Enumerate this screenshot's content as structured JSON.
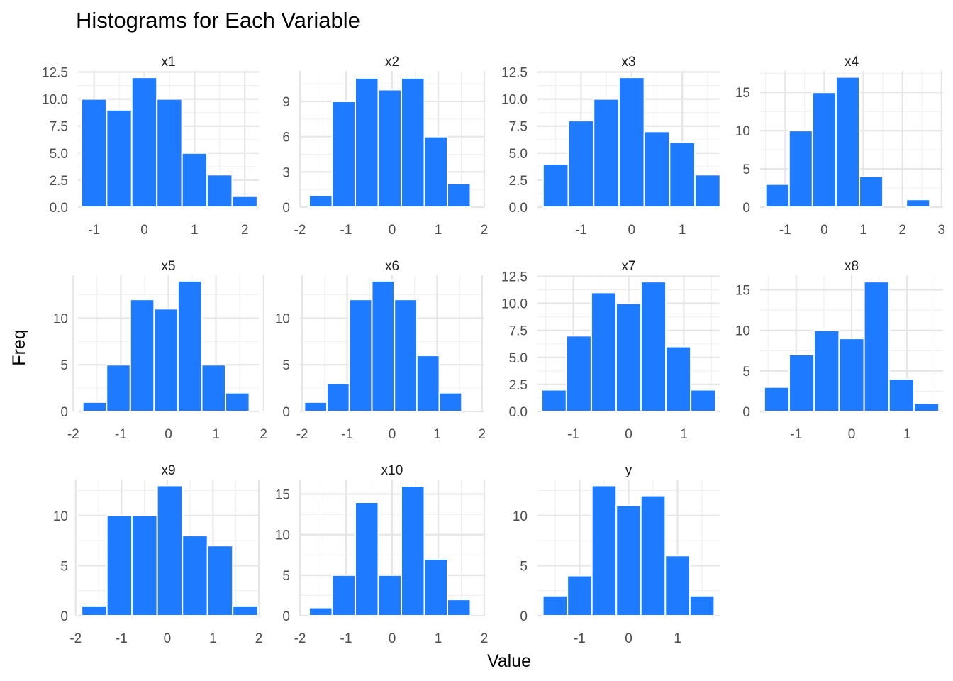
{
  "title": "Histograms for Each Variable",
  "xlabel": "Value",
  "ylabel": "Freq",
  "bar_color": "#1E7BFF",
  "chart_data": {
    "type": "bar",
    "title": "Histograms for Each Variable",
    "xlabel": "Value",
    "ylabel": "Freq",
    "grid": true,
    "facets": [
      {
        "name": "x1",
        "x_ticks": [
          "-1",
          "0",
          "1",
          "2"
        ],
        "y_ticks": [
          "0.0",
          "2.5",
          "5.0",
          "7.5",
          "10.0",
          "12.5"
        ],
        "xlim": [
          -1.32,
          2.28
        ],
        "ylim": [
          0,
          12.6
        ],
        "x_tick_values": [
          -1,
          0,
          1,
          2
        ],
        "y_tick_values": [
          0,
          2.5,
          5,
          7.5,
          10,
          12.5
        ],
        "bins": [
          {
            "x0": -1.25,
            "x1": -0.75,
            "count": 10
          },
          {
            "x0": -0.75,
            "x1": -0.25,
            "count": 9
          },
          {
            "x0": -0.25,
            "x1": 0.25,
            "count": 12
          },
          {
            "x0": 0.25,
            "x1": 0.75,
            "count": 10
          },
          {
            "x0": 0.75,
            "x1": 1.25,
            "count": 5
          },
          {
            "x0": 1.25,
            "x1": 1.75,
            "count": 3
          },
          {
            "x0": 1.75,
            "x1": 2.25,
            "count": 1
          }
        ]
      },
      {
        "name": "x2",
        "x_ticks": [
          "-2",
          "-1",
          "0",
          "1",
          "2"
        ],
        "y_ticks": [
          "0",
          "3",
          "6",
          "9"
        ],
        "xlim": [
          -2.0,
          2.0
        ],
        "ylim": [
          0,
          11.6
        ],
        "x_tick_values": [
          -2,
          -1,
          0,
          1,
          2
        ],
        "y_tick_values": [
          0,
          3,
          6,
          9
        ],
        "bins": [
          {
            "x0": -1.8,
            "x1": -1.3,
            "count": 1
          },
          {
            "x0": -1.3,
            "x1": -0.8,
            "count": 9
          },
          {
            "x0": -0.8,
            "x1": -0.3,
            "count": 11
          },
          {
            "x0": -0.3,
            "x1": 0.2,
            "count": 10
          },
          {
            "x0": 0.2,
            "x1": 0.7,
            "count": 11
          },
          {
            "x0": 0.7,
            "x1": 1.2,
            "count": 6
          },
          {
            "x0": 1.2,
            "x1": 1.7,
            "count": 2
          }
        ]
      },
      {
        "name": "x3",
        "x_ticks": [
          "-1",
          "0",
          "1"
        ],
        "y_ticks": [
          "0.0",
          "2.5",
          "5.0",
          "7.5",
          "10.0",
          "12.5"
        ],
        "xlim": [
          -1.86,
          1.74
        ],
        "ylim": [
          0,
          12.6
        ],
        "x_tick_values": [
          -1,
          0,
          1
        ],
        "y_tick_values": [
          0,
          2.5,
          5,
          7.5,
          10,
          12.5
        ],
        "bins": [
          {
            "x0": -1.75,
            "x1": -1.25,
            "count": 4
          },
          {
            "x0": -1.25,
            "x1": -0.75,
            "count": 8
          },
          {
            "x0": -0.75,
            "x1": -0.25,
            "count": 10
          },
          {
            "x0": -0.25,
            "x1": 0.25,
            "count": 12
          },
          {
            "x0": 0.25,
            "x1": 0.75,
            "count": 7
          },
          {
            "x0": 0.75,
            "x1": 1.25,
            "count": 6
          },
          {
            "x0": 1.25,
            "x1": 1.75,
            "count": 3
          }
        ]
      },
      {
        "name": "x4",
        "x_ticks": [
          "-1",
          "0",
          "1",
          "2",
          "3"
        ],
        "y_ticks": [
          "0",
          "5",
          "10",
          "15"
        ],
        "xlim": [
          -1.64,
          3.04
        ],
        "ylim": [
          0,
          17.8
        ],
        "x_tick_values": [
          -1,
          0,
          1,
          2,
          3
        ],
        "y_tick_values": [
          0,
          5,
          10,
          15
        ],
        "bins": [
          {
            "x0": -1.5,
            "x1": -0.9,
            "count": 3
          },
          {
            "x0": -0.9,
            "x1": -0.3,
            "count": 10
          },
          {
            "x0": -0.3,
            "x1": 0.3,
            "count": 15
          },
          {
            "x0": 0.3,
            "x1": 0.9,
            "count": 17
          },
          {
            "x0": 0.9,
            "x1": 1.5,
            "count": 4
          },
          {
            "x0": 1.5,
            "x1": 2.1,
            "count": 0
          },
          {
            "x0": 2.1,
            "x1": 2.7,
            "count": 1
          }
        ]
      },
      {
        "name": "x5",
        "x_ticks": [
          "-2",
          "-1",
          "0",
          "1",
          "2"
        ],
        "y_ticks": [
          "0",
          "5",
          "10"
        ],
        "xlim": [
          -1.9,
          1.9
        ],
        "ylim": [
          0,
          14.6
        ],
        "x_tick_values": [
          -2,
          -1,
          0,
          1,
          2
        ],
        "y_tick_values": [
          0,
          5,
          10
        ],
        "bins": [
          {
            "x0": -1.8,
            "x1": -1.3,
            "count": 1
          },
          {
            "x0": -1.3,
            "x1": -0.8,
            "count": 5
          },
          {
            "x0": -0.8,
            "x1": -0.3,
            "count": 12
          },
          {
            "x0": -0.3,
            "x1": 0.2,
            "count": 11
          },
          {
            "x0": 0.2,
            "x1": 0.7,
            "count": 14
          },
          {
            "x0": 0.7,
            "x1": 1.2,
            "count": 5
          },
          {
            "x0": 1.2,
            "x1": 1.7,
            "count": 2
          }
        ]
      },
      {
        "name": "x6",
        "x_ticks": [
          "-2",
          "-1",
          "0",
          "1",
          "2"
        ],
        "y_ticks": [
          "0",
          "5",
          "10"
        ],
        "xlim": [
          -2.05,
          2.05
        ],
        "ylim": [
          0,
          14.6
        ],
        "x_tick_values": [
          -2,
          -1,
          0,
          1,
          2
        ],
        "y_tick_values": [
          0,
          5,
          10
        ],
        "bins": [
          {
            "x0": -1.95,
            "x1": -1.45,
            "count": 1
          },
          {
            "x0": -1.45,
            "x1": -0.95,
            "count": 3
          },
          {
            "x0": -0.95,
            "x1": -0.45,
            "count": 12
          },
          {
            "x0": -0.45,
            "x1": 0.05,
            "count": 14
          },
          {
            "x0": 0.05,
            "x1": 0.55,
            "count": 12
          },
          {
            "x0": 0.55,
            "x1": 1.05,
            "count": 6
          },
          {
            "x0": 1.05,
            "x1": 1.55,
            "count": 2
          }
        ]
      },
      {
        "name": "x7",
        "x_ticks": [
          "-1",
          "0",
          "1"
        ],
        "y_ticks": [
          "0.0",
          "2.5",
          "5.0",
          "7.5",
          "10.0",
          "12.5"
        ],
        "xlim": [
          -1.65,
          1.65
        ],
        "ylim": [
          0,
          12.6
        ],
        "x_tick_values": [
          -1,
          0,
          1
        ],
        "y_tick_values": [
          0,
          2.5,
          5,
          7.5,
          10,
          12.5
        ],
        "bins": [
          {
            "x0": -1.575,
            "x1": -1.125,
            "count": 2
          },
          {
            "x0": -1.125,
            "x1": -0.675,
            "count": 7
          },
          {
            "x0": -0.675,
            "x1": -0.225,
            "count": 11
          },
          {
            "x0": -0.225,
            "x1": 0.225,
            "count": 10
          },
          {
            "x0": 0.225,
            "x1": 0.675,
            "count": 12
          },
          {
            "x0": 0.675,
            "x1": 1.125,
            "count": 6
          },
          {
            "x0": 1.125,
            "x1": 1.575,
            "count": 2
          }
        ]
      },
      {
        "name": "x8",
        "x_ticks": [
          "-1",
          "0",
          "1"
        ],
        "y_ticks": [
          "0",
          "5",
          "10",
          "15"
        ],
        "xlim": [
          -1.65,
          1.65
        ],
        "ylim": [
          0,
          16.8
        ],
        "x_tick_values": [
          -1,
          0,
          1
        ],
        "y_tick_values": [
          0,
          5,
          10,
          15
        ],
        "bins": [
          {
            "x0": -1.575,
            "x1": -1.125,
            "count": 3
          },
          {
            "x0": -1.125,
            "x1": -0.675,
            "count": 7
          },
          {
            "x0": -0.675,
            "x1": -0.225,
            "count": 10
          },
          {
            "x0": -0.225,
            "x1": 0.225,
            "count": 9
          },
          {
            "x0": 0.225,
            "x1": 0.675,
            "count": 16
          },
          {
            "x0": 0.675,
            "x1": 1.125,
            "count": 4
          },
          {
            "x0": 1.125,
            "x1": 1.575,
            "count": 1
          }
        ]
      },
      {
        "name": "x9",
        "x_ticks": [
          "-2",
          "-1",
          "0",
          "1",
          "2"
        ],
        "y_ticks": [
          "0",
          "5",
          "10"
        ],
        "xlim": [
          -1.95,
          2.0
        ],
        "ylim": [
          0,
          13.6
        ],
        "x_tick_values": [
          -2,
          -1,
          0,
          1,
          2
        ],
        "y_tick_values": [
          0,
          5,
          10
        ],
        "bins": [
          {
            "x0": -1.87,
            "x1": -1.32,
            "count": 1
          },
          {
            "x0": -1.32,
            "x1": -0.77,
            "count": 10
          },
          {
            "x0": -0.77,
            "x1": -0.22,
            "count": 10
          },
          {
            "x0": -0.22,
            "x1": 0.33,
            "count": 13
          },
          {
            "x0": 0.33,
            "x1": 0.88,
            "count": 8
          },
          {
            "x0": 0.88,
            "x1": 1.43,
            "count": 7
          },
          {
            "x0": 1.43,
            "x1": 1.98,
            "count": 1
          }
        ]
      },
      {
        "name": "x10",
        "x_ticks": [
          "-2",
          "-1",
          "0",
          "1",
          "2"
        ],
        "y_ticks": [
          "0",
          "5",
          "10",
          "15"
        ],
        "xlim": [
          -2.0,
          2.0
        ],
        "ylim": [
          0,
          16.8
        ],
        "x_tick_values": [
          -2,
          -1,
          0,
          1,
          2
        ],
        "y_tick_values": [
          0,
          5,
          10,
          15
        ],
        "bins": [
          {
            "x0": -1.8,
            "x1": -1.3,
            "count": 1
          },
          {
            "x0": -1.3,
            "x1": -0.8,
            "count": 5
          },
          {
            "x0": -0.8,
            "x1": -0.3,
            "count": 14
          },
          {
            "x0": -0.3,
            "x1": 0.2,
            "count": 5
          },
          {
            "x0": 0.2,
            "x1": 0.7,
            "count": 16
          },
          {
            "x0": 0.7,
            "x1": 1.2,
            "count": 7
          },
          {
            "x0": 1.2,
            "x1": 1.7,
            "count": 2
          }
        ]
      },
      {
        "name": "y",
        "x_ticks": [
          "-1",
          "0",
          "1"
        ],
        "y_ticks": [
          "0",
          "5",
          "10"
        ],
        "xlim": [
          -1.86,
          1.86
        ],
        "ylim": [
          0,
          13.6
        ],
        "x_tick_values": [
          -1,
          0,
          1
        ],
        "y_tick_values": [
          0,
          5,
          10
        ],
        "bins": [
          {
            "x0": -1.75,
            "x1": -1.25,
            "count": 2
          },
          {
            "x0": -1.25,
            "x1": -0.75,
            "count": 4
          },
          {
            "x0": -0.75,
            "x1": -0.25,
            "count": 13
          },
          {
            "x0": -0.25,
            "x1": 0.25,
            "count": 11
          },
          {
            "x0": 0.25,
            "x1": 0.75,
            "count": 12
          },
          {
            "x0": 0.75,
            "x1": 1.25,
            "count": 6
          },
          {
            "x0": 1.25,
            "x1": 1.75,
            "count": 2
          }
        ]
      }
    ]
  }
}
